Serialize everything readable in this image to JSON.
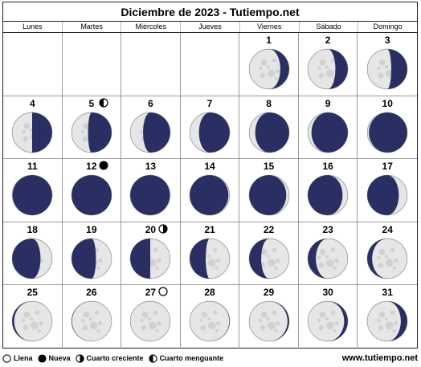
{
  "title": "Diciembre de 2023 - Tutiempo.net",
  "weekdays": [
    "Lunes",
    "Martes",
    "Miércoles",
    "Jueves",
    "Viernes",
    "Sábado",
    "Domingo"
  ],
  "first_weekday_offset": 4,
  "days": [
    {
      "day": "1",
      "illum": 0.78,
      "waxing": false
    },
    {
      "day": "2",
      "illum": 0.69,
      "waxing": false
    },
    {
      "day": "3",
      "illum": 0.6,
      "waxing": false
    },
    {
      "day": "4",
      "illum": 0.5,
      "waxing": false
    },
    {
      "day": "5",
      "illum": 0.41,
      "waxing": false,
      "phase": "cuarto-menguante"
    },
    {
      "day": "6",
      "illum": 0.32,
      "waxing": false
    },
    {
      "day": "7",
      "illum": 0.23,
      "waxing": false
    },
    {
      "day": "8",
      "illum": 0.15,
      "waxing": false
    },
    {
      "day": "9",
      "illum": 0.09,
      "waxing": false
    },
    {
      "day": "10",
      "illum": 0.04,
      "waxing": false
    },
    {
      "day": "11",
      "illum": 0.01,
      "waxing": false
    },
    {
      "day": "12",
      "illum": 0.0,
      "waxing": true,
      "phase": "nueva"
    },
    {
      "day": "13",
      "illum": 0.01,
      "waxing": true
    },
    {
      "day": "14",
      "illum": 0.03,
      "waxing": true
    },
    {
      "day": "15",
      "illum": 0.07,
      "waxing": true
    },
    {
      "day": "16",
      "illum": 0.13,
      "waxing": true
    },
    {
      "day": "17",
      "illum": 0.21,
      "waxing": true
    },
    {
      "day": "18",
      "illum": 0.29,
      "waxing": true
    },
    {
      "day": "19",
      "illum": 0.39,
      "waxing": true
    },
    {
      "day": "20",
      "illum": 0.5,
      "waxing": true,
      "phase": "cuarto-creciente"
    },
    {
      "day": "21",
      "illum": 0.6,
      "waxing": true
    },
    {
      "day": "22",
      "illum": 0.7,
      "waxing": true
    },
    {
      "day": "23",
      "illum": 0.8,
      "waxing": true
    },
    {
      "day": "24",
      "illum": 0.88,
      "waxing": true
    },
    {
      "day": "25",
      "illum": 0.95,
      "waxing": true
    },
    {
      "day": "26",
      "illum": 0.99,
      "waxing": true
    },
    {
      "day": "27",
      "illum": 1.0,
      "waxing": false,
      "phase": "llena"
    },
    {
      "day": "28",
      "illum": 0.99,
      "waxing": false
    },
    {
      "day": "29",
      "illum": 0.96,
      "waxing": false
    },
    {
      "day": "30",
      "illum": 0.91,
      "waxing": false
    },
    {
      "day": "31",
      "illum": 0.84,
      "waxing": false
    }
  ],
  "legend": {
    "llena": "Llena",
    "nueva": "Nueva",
    "creciente": "Cuarto creciente",
    "menguante": "Cuarto menguante"
  },
  "site": "www.tutiempo.net",
  "colors": {
    "dark_side": "#2a2f63",
    "lit_side": "#e6e6e6",
    "crater": "#c8c8c8"
  }
}
